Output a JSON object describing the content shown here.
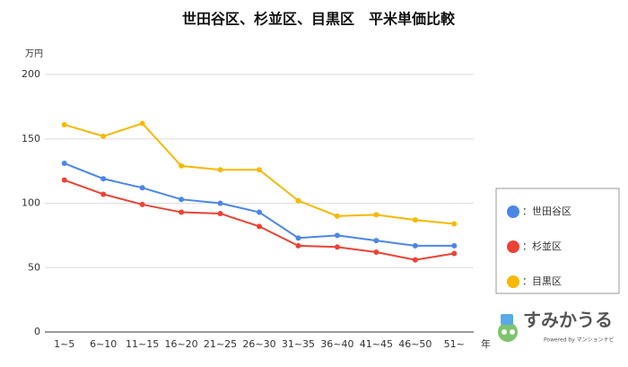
{
  "chart_data": {
    "type": "line",
    "title": "世田谷区、杉並区、目黒区　平米単価比較",
    "y_unit": "万円",
    "x_label": "年",
    "categories": [
      "1~5",
      "6~10",
      "11~15",
      "16~20",
      "21~25",
      "26~30",
      "31~35",
      "36~40",
      "41~45",
      "46~50",
      "51~"
    ],
    "series": [
      {
        "name": "：世田谷区",
        "color": "#4a86e8",
        "values": [
          131,
          119,
          112,
          103,
          100,
          93,
          73,
          75,
          71,
          67,
          67
        ]
      },
      {
        "name": "：杉並区",
        "color": "#ea4335",
        "values": [
          118,
          107,
          99,
          93,
          92,
          82,
          67,
          66,
          62,
          56,
          61
        ]
      },
      {
        "name": "：目黒区",
        "color": "#f6b900",
        "values": [
          161,
          152,
          162,
          129,
          126,
          126,
          102,
          90,
          91,
          87,
          84
        ]
      }
    ],
    "ylim": [
      0,
      200
    ],
    "yticks": [
      0,
      50,
      100,
      150,
      200
    ],
    "grid": true
  },
  "branding": {
    "logo": "すみかうる",
    "powered": "Powered by マンションナビ"
  }
}
